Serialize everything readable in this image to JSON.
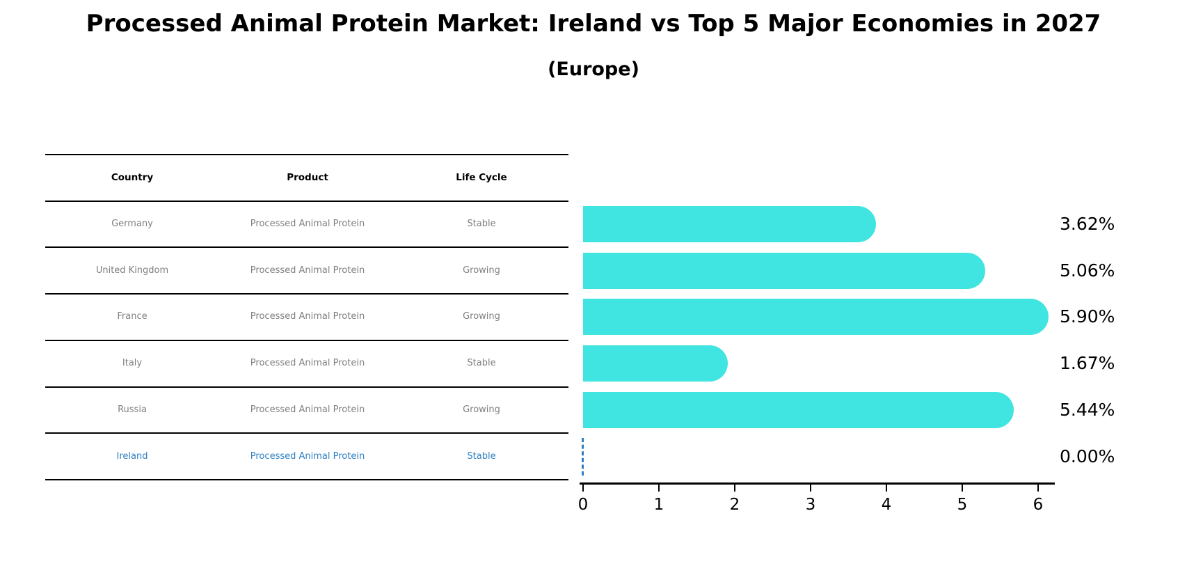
{
  "page": {
    "kind": "figure-with-table-and-horizontal-bar-chart"
  },
  "table": {
    "headers": [
      "Country",
      "Product",
      "Life Cycle"
    ],
    "rows": [
      {
        "country": "Germany",
        "product": "Processed Animal Protein",
        "life_cycle": "Stable",
        "highlighted": false
      },
      {
        "country": "United Kingdom",
        "product": "Processed Animal Protein",
        "life_cycle": "Growing",
        "highlighted": false
      },
      {
        "country": "France",
        "product": "Processed Animal Protein",
        "life_cycle": "Growing",
        "highlighted": false
      },
      {
        "country": "Italy",
        "product": "Processed Animal Protein",
        "life_cycle": "Stable",
        "highlighted": false
      },
      {
        "country": "Russia",
        "product": "Processed Animal Protein",
        "life_cycle": "Growing",
        "highlighted": false
      },
      {
        "country": "Ireland",
        "product": "Processed Animal Protein",
        "life_cycle": "Stable",
        "highlighted": true
      }
    ]
  },
  "chart_data": {
    "type": "bar",
    "orientation": "horizontal",
    "title": "Processed Animal Protein Market: Ireland vs Top 5 Major Economies in 2027",
    "subtitle": "(Europe)",
    "categories": [
      "Germany",
      "United Kingdom",
      "France",
      "Italy",
      "Russia",
      "Ireland"
    ],
    "values": [
      3.62,
      5.06,
      5.9,
      1.67,
      5.44,
      0.0
    ],
    "value_labels": [
      "3.62%",
      "5.06%",
      "5.90%",
      "1.67%",
      "5.44%",
      "0.00%"
    ],
    "xlabel": "",
    "ylabel": "",
    "xticks": [
      0,
      1,
      2,
      3,
      4,
      5,
      6
    ],
    "xlim": [
      0,
      6.2
    ],
    "grid": false,
    "legend": false,
    "bar_color": "#40e4e0",
    "highlight_index": 5,
    "highlight_color": "#2d7fc1",
    "highlight_marker": "dashed-zero-line"
  }
}
